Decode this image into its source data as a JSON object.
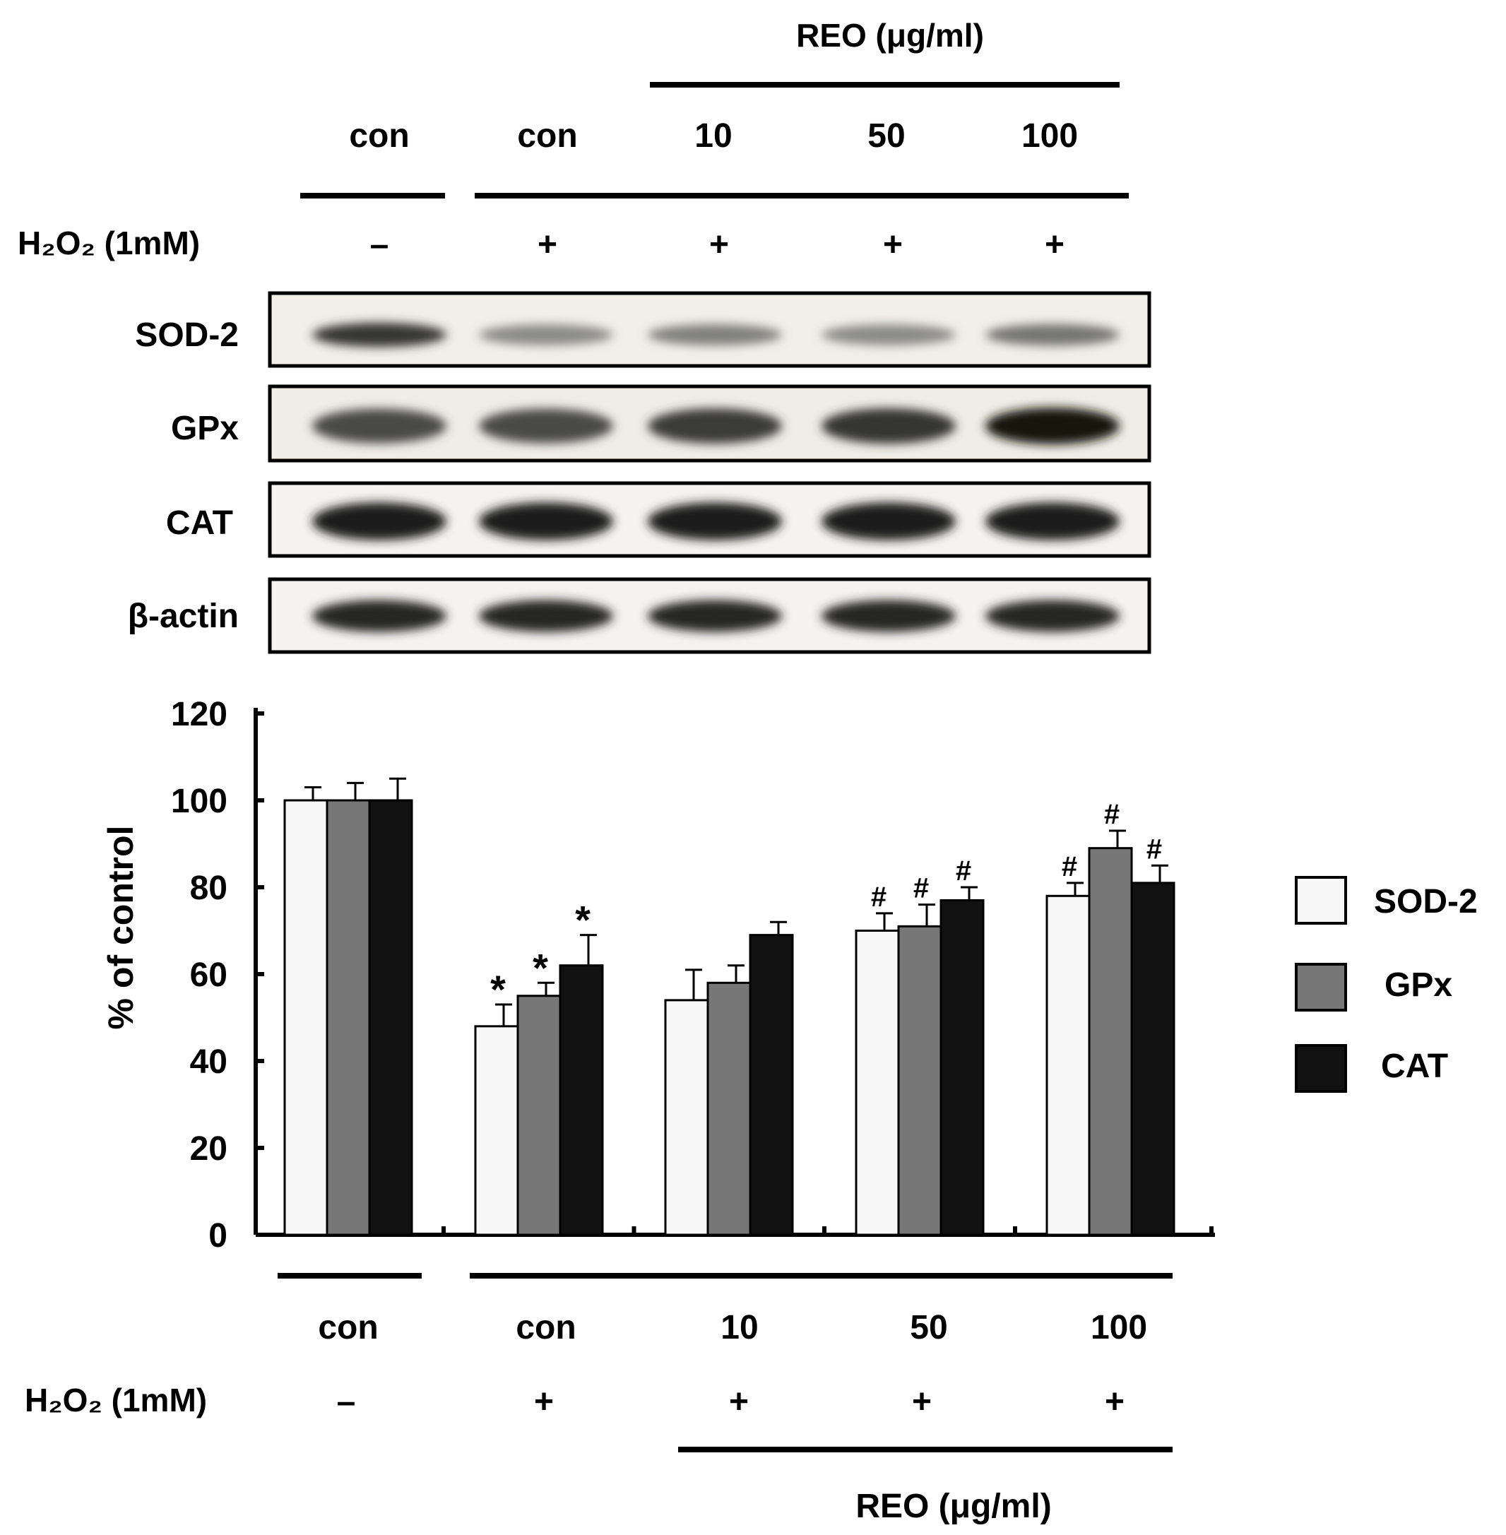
{
  "blot": {
    "top_group_label": "REO (μg/ml)",
    "lanes": [
      "con",
      "con",
      "10",
      "50",
      "100"
    ],
    "treatment_label": "H₂O₂ (1mM)",
    "treatment_signs": [
      "–",
      "+",
      "+",
      "+",
      "+"
    ],
    "rows": [
      {
        "label": "SOD-2",
        "intensities": [
          0.85,
          0.45,
          0.5,
          0.45,
          0.55
        ]
      },
      {
        "label": "GPx",
        "intensities": [
          0.75,
          0.75,
          0.82,
          0.85,
          1.0
        ]
      },
      {
        "label": "CAT",
        "intensities": [
          0.95,
          0.95,
          0.95,
          0.95,
          0.95
        ]
      },
      {
        "label": "β-actin",
        "intensities": [
          0.92,
          0.92,
          0.92,
          0.92,
          0.92
        ]
      }
    ]
  },
  "chart_data": {
    "type": "bar",
    "categories": [
      "con",
      "con",
      "10",
      "50",
      "100"
    ],
    "ylabel": "% of control",
    "ylim": [
      0,
      120
    ],
    "yticks": [
      0,
      20,
      40,
      60,
      80,
      100,
      120
    ],
    "series": [
      {
        "name": "SOD-2",
        "color": "#f7f7f7",
        "values": [
          100,
          48,
          54,
          70,
          78
        ],
        "errors": [
          3,
          5,
          7,
          4,
          3
        ],
        "marks": [
          "",
          "*",
          "",
          "#",
          "#"
        ]
      },
      {
        "name": "GPx",
        "color": "#777777",
        "values": [
          100,
          55,
          58,
          71,
          89
        ],
        "errors": [
          4,
          3,
          4,
          5,
          4
        ],
        "marks": [
          "",
          "*",
          "",
          "#",
          "#"
        ]
      },
      {
        "name": "CAT",
        "color": "#111111",
        "values": [
          100,
          62,
          69,
          77,
          81
        ],
        "errors": [
          5,
          7,
          3,
          3,
          4
        ],
        "marks": [
          "",
          "*",
          "",
          "#",
          "#"
        ]
      }
    ],
    "legend_position": "right",
    "bottom_treatment_label": "H₂O₂ (1mM)",
    "bottom_treatment_signs": [
      "–",
      "+",
      "+",
      "+",
      "+"
    ],
    "bottom_group_label": "REO (μg/ml)"
  }
}
